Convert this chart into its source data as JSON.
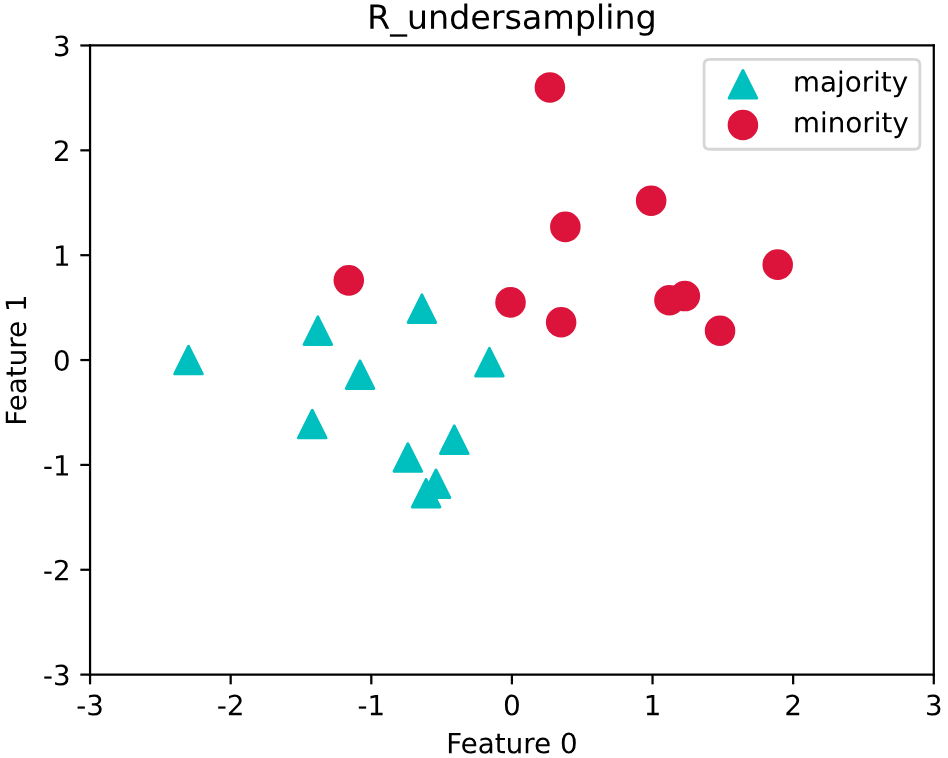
{
  "chart_data": {
    "type": "scatter",
    "title": "R_undersampling",
    "xlabel": "Feature 0",
    "ylabel": "Feature 1",
    "xlim": [
      -3,
      3
    ],
    "ylim": [
      -3,
      3
    ],
    "xticks": [
      -3,
      -2,
      -1,
      0,
      1,
      2,
      3
    ],
    "yticks": [
      -3,
      -2,
      -1,
      0,
      1,
      2,
      3
    ],
    "grid": false,
    "legend": "top right",
    "series": [
      {
        "name": "majority",
        "color": "#00bfbf",
        "marker": "triangle",
        "x": [
          -2.3,
          -1.38,
          -0.64,
          -1.08,
          -0.16,
          -1.42,
          -0.74,
          -0.41,
          -0.54,
          -0.61
        ],
        "values": [
          0.0,
          0.28,
          0.49,
          -0.14,
          -0.02,
          -0.61,
          -0.93,
          -0.76,
          -1.18,
          -1.27
        ]
      },
      {
        "name": "minority",
        "color": "#dc143c",
        "marker": "circle",
        "x": [
          0.27,
          -1.16,
          0.38,
          -0.01,
          0.35,
          0.99,
          1.12,
          1.23,
          1.48,
          1.89
        ],
        "values": [
          2.6,
          0.76,
          1.27,
          0.55,
          0.36,
          1.52,
          0.57,
          0.61,
          0.28,
          0.91
        ]
      }
    ]
  }
}
